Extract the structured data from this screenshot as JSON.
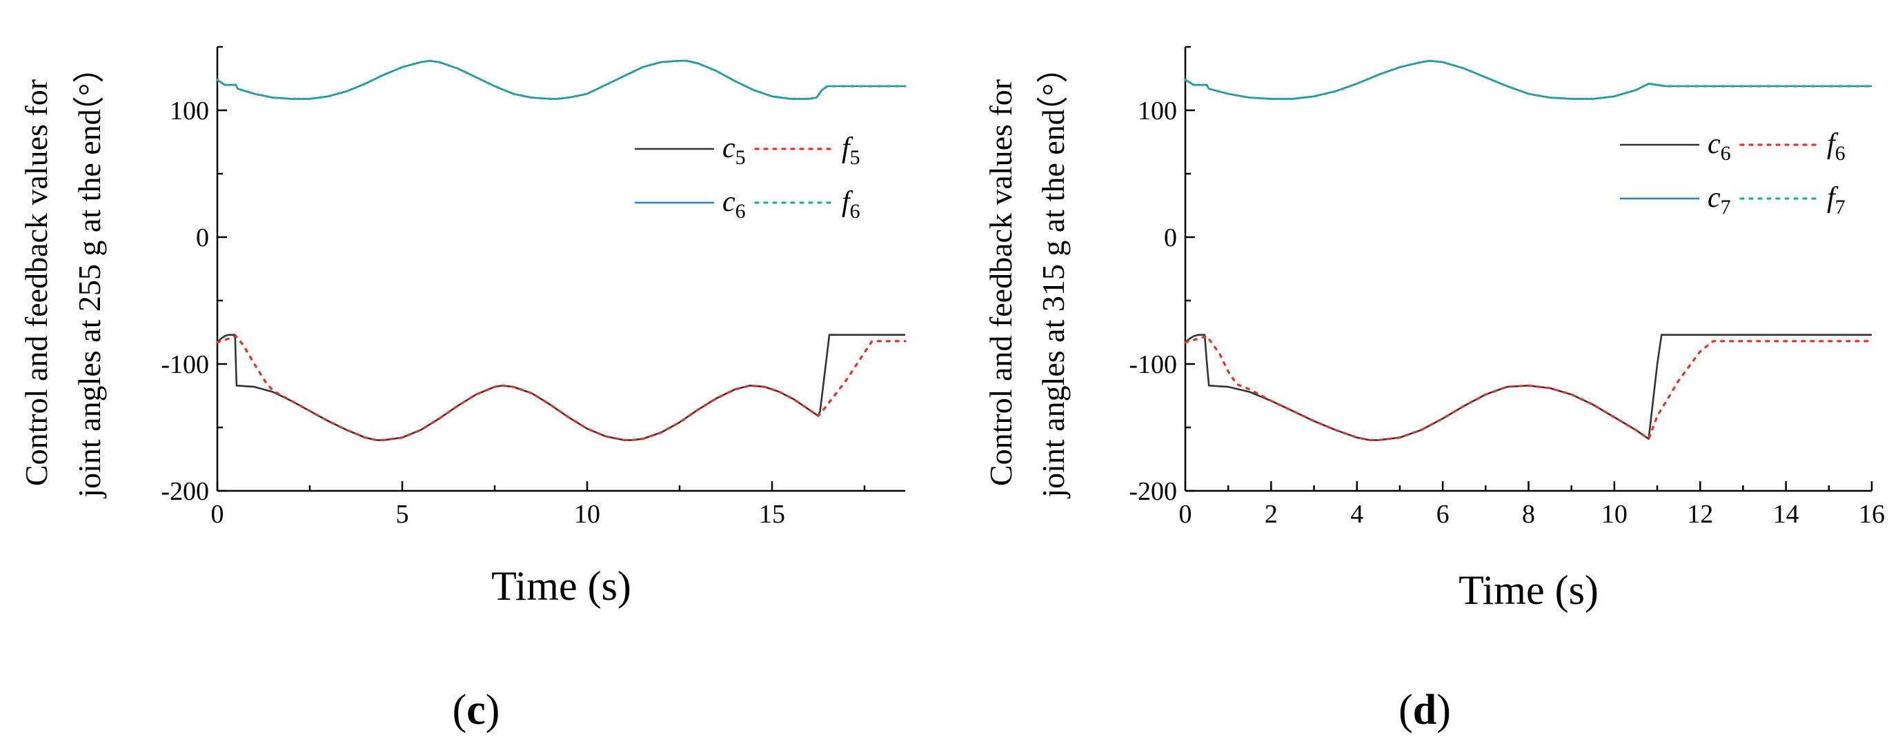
{
  "chart_data": [
    {
      "type": "line",
      "panel_label": {
        "open": "(",
        "letter": "c",
        "close": ")"
      },
      "xlabel": "Time (s)",
      "ylabel_line1": "Control and feedback values for",
      "ylabel_line2": "joint angles at 255 g at the end",
      "ylabel_unit": "（°）",
      "xlim": [
        0,
        18.6
      ],
      "ylim": [
        -200,
        150
      ],
      "x_ticks": [
        0,
        5,
        10,
        15
      ],
      "x_tick_labels": [
        "0",
        "5",
        "10",
        "15"
      ],
      "y_ticks": [
        -200,
        -100,
        0,
        100
      ],
      "y_tick_labels": [
        "-200",
        "-100",
        "0",
        "100"
      ],
      "legend_position": "right-middle",
      "series": [
        {
          "name": "c",
          "sub": "5",
          "color": "#333333",
          "style": "solid",
          "x": [
            0,
            0.1,
            0.2,
            0.3,
            0.48,
            0.5,
            0.52,
            1.0,
            1.5,
            2.0,
            2.5,
            3.0,
            3.5,
            4.0,
            4.3,
            4.5,
            5.0,
            5.5,
            6.0,
            6.5,
            7.0,
            7.5,
            7.7,
            8.0,
            8.5,
            9.0,
            9.5,
            10.0,
            10.5,
            11.0,
            11.2,
            11.5,
            12.0,
            12.5,
            13.0,
            13.5,
            14.0,
            14.4,
            14.8,
            15.2,
            15.6,
            16.0,
            16.25,
            16.3,
            16.55,
            17.0,
            18.6
          ],
          "y": [
            -83,
            -80,
            -78,
            -77,
            -77,
            -98,
            -117,
            -118,
            -122,
            -129,
            -137,
            -145,
            -152,
            -158,
            -160,
            -160,
            -158,
            -152,
            -143,
            -133,
            -124,
            -118,
            -117,
            -118,
            -123,
            -132,
            -142,
            -151,
            -157,
            -160,
            -160,
            -159,
            -154,
            -146,
            -136,
            -127,
            -120,
            -117,
            -118,
            -122,
            -128,
            -136,
            -141,
            -137,
            -77,
            -77,
            -77
          ]
        },
        {
          "name": "f",
          "sub": "5",
          "color": "#e8302a",
          "style": "dotted",
          "x": [
            0,
            0.3,
            0.5,
            0.7,
            1.0,
            1.3,
            1.5,
            2.0,
            2.5,
            3.0,
            3.5,
            4.0,
            4.3,
            4.5,
            5.0,
            5.5,
            6.0,
            6.5,
            7.0,
            7.5,
            7.7,
            8.0,
            8.5,
            9.0,
            9.5,
            10.0,
            10.5,
            11.0,
            11.2,
            11.5,
            12.0,
            12.5,
            13.0,
            13.5,
            14.0,
            14.4,
            14.8,
            15.2,
            15.6,
            16.0,
            16.25,
            16.5,
            17.0,
            17.7,
            18.6
          ],
          "y": [
            -83,
            -80,
            -78,
            -85,
            -100,
            -114,
            -121,
            -129,
            -137,
            -145,
            -152,
            -158,
            -160,
            -160,
            -158,
            -152,
            -143,
            -133,
            -124,
            -118,
            -117,
            -118,
            -123,
            -132,
            -142,
            -151,
            -157,
            -160,
            -160,
            -159,
            -154,
            -146,
            -136,
            -127,
            -120,
            -117,
            -118,
            -122,
            -128,
            -136,
            -141,
            -132,
            -113,
            -82,
            -82
          ]
        },
        {
          "name": "c",
          "sub": "6",
          "color": "#2e7fc2",
          "style": "solid",
          "x": [
            0,
            0.1,
            0.2,
            0.5,
            0.55,
            1.0,
            1.5,
            2.0,
            2.5,
            3.0,
            3.5,
            4.0,
            4.5,
            5.0,
            5.5,
            5.75,
            6.0,
            6.5,
            7.0,
            7.5,
            8.0,
            8.5,
            9.0,
            9.2,
            9.5,
            10.0,
            10.5,
            11.0,
            11.5,
            12.0,
            12.5,
            12.7,
            13.0,
            13.5,
            14.0,
            14.5,
            15.0,
            15.5,
            16.0,
            16.2,
            16.35,
            16.5,
            17.0,
            18.6
          ],
          "y": [
            124,
            122,
            120,
            120,
            117,
            113,
            110,
            109,
            109,
            111,
            115,
            121,
            128,
            134,
            138,
            139,
            138,
            133,
            126,
            119,
            113,
            110,
            109,
            109,
            110,
            113,
            120,
            127,
            134,
            138,
            139,
            139,
            137,
            131,
            123,
            116,
            111,
            109,
            109,
            110,
            116,
            119,
            119,
            119
          ]
        },
        {
          "name": "f",
          "sub": "6",
          "color": "#20b08a",
          "style": "dotted",
          "x": [
            0,
            0.1,
            0.2,
            0.5,
            0.55,
            1.0,
            1.5,
            2.0,
            2.5,
            3.0,
            3.5,
            4.0,
            4.5,
            5.0,
            5.5,
            5.75,
            6.0,
            6.5,
            7.0,
            7.5,
            8.0,
            8.5,
            9.0,
            9.2,
            9.5,
            10.0,
            10.5,
            11.0,
            11.5,
            12.0,
            12.5,
            12.7,
            13.0,
            13.5,
            14.0,
            14.5,
            15.0,
            15.5,
            16.0,
            16.2,
            16.35,
            16.5,
            17.0,
            18.6
          ],
          "y": [
            124,
            122,
            120,
            120,
            117,
            113,
            110,
            109,
            109,
            111,
            115,
            121,
            128,
            134,
            138,
            139,
            138,
            133,
            126,
            119,
            113,
            110,
            109,
            109,
            110,
            113,
            120,
            127,
            134,
            138,
            139,
            139,
            137,
            131,
            123,
            116,
            111,
            109,
            109,
            110,
            116,
            119,
            119,
            119
          ]
        }
      ],
      "legend_rows": [
        {
          "left": {
            "name": "c",
            "sub": "5"
          },
          "right": {
            "name": "f",
            "sub": "5"
          }
        },
        {
          "left": {
            "name": "c",
            "sub": "6"
          },
          "right": {
            "name": "f",
            "sub": "6"
          }
        }
      ]
    },
    {
      "type": "line",
      "panel_label": {
        "open": "(",
        "letter": "d",
        "close": ")"
      },
      "xlabel": "Time (s)",
      "ylabel_line1": "Control and feedback values for",
      "ylabel_line2": "joint angles at 315 g at the end",
      "ylabel_unit": "（°）",
      "xlim": [
        0,
        16
      ],
      "ylim": [
        -200,
        150
      ],
      "x_ticks": [
        0,
        2,
        4,
        6,
        8,
        10,
        12,
        14,
        16
      ],
      "x_tick_labels": [
        "0",
        "2",
        "4",
        "6",
        "8",
        "10",
        "12",
        "14",
        "16"
      ],
      "y_ticks": [
        -200,
        -100,
        0,
        100
      ],
      "y_tick_labels": [
        "-200",
        "-100",
        "0",
        "100"
      ],
      "legend_position": "top-right",
      "series": [
        {
          "name": "c",
          "sub": "6",
          "color": "#333333",
          "style": "solid",
          "x": [
            0,
            0.1,
            0.2,
            0.3,
            0.45,
            0.5,
            0.55,
            1.0,
            1.5,
            2.0,
            2.5,
            3.0,
            3.5,
            4.0,
            4.3,
            4.5,
            5.0,
            5.5,
            6.0,
            6.5,
            7.0,
            7.5,
            8.0,
            8.5,
            9.0,
            9.5,
            10.0,
            10.5,
            10.8,
            11.0,
            11.1,
            12.0,
            16.0
          ],
          "y": [
            -83,
            -80,
            -78,
            -77,
            -77,
            -98,
            -117,
            -118,
            -122,
            -129,
            -137,
            -145,
            -152,
            -158,
            -160,
            -160,
            -158,
            -152,
            -143,
            -133,
            -124,
            -118,
            -117,
            -119,
            -124,
            -132,
            -142,
            -152,
            -159,
            -100,
            -77,
            -77,
            -77
          ]
        },
        {
          "name": "f",
          "sub": "6",
          "color": "#e8302a",
          "style": "dotted",
          "x": [
            0,
            0.3,
            0.5,
            0.8,
            1.0,
            1.2,
            1.5,
            2.0,
            2.5,
            3.0,
            3.5,
            4.0,
            4.3,
            4.5,
            5.0,
            5.5,
            6.0,
            6.5,
            7.0,
            7.5,
            8.0,
            8.5,
            9.0,
            9.5,
            10.0,
            10.5,
            10.8,
            11.0,
            11.5,
            12.0,
            12.3,
            16.0
          ],
          "y": [
            -83,
            -80,
            -78,
            -92,
            -106,
            -116,
            -120,
            -129,
            -137,
            -145,
            -152,
            -158,
            -160,
            -160,
            -158,
            -152,
            -143,
            -133,
            -124,
            -118,
            -117,
            -119,
            -124,
            -132,
            -142,
            -152,
            -159,
            -141,
            -113,
            -90,
            -82,
            -82
          ]
        },
        {
          "name": "c",
          "sub": "7",
          "color": "#2e7fc2",
          "style": "solid",
          "x": [
            0,
            0.1,
            0.2,
            0.5,
            0.55,
            1.0,
            1.5,
            2.0,
            2.5,
            3.0,
            3.5,
            4.0,
            4.5,
            5.0,
            5.5,
            5.7,
            6.0,
            6.5,
            7.0,
            7.5,
            8.0,
            8.5,
            9.0,
            9.5,
            10.0,
            10.5,
            10.8,
            11.0,
            11.2,
            16.0
          ],
          "y": [
            124,
            122,
            120,
            120,
            117,
            113,
            110,
            109,
            109,
            111,
            115,
            121,
            128,
            134,
            138,
            139,
            138,
            133,
            126,
            119,
            113,
            110,
            109,
            109,
            111,
            116,
            121,
            120,
            119,
            119
          ]
        },
        {
          "name": "f",
          "sub": "7",
          "color": "#20b08a",
          "style": "dotted",
          "x": [
            0,
            0.1,
            0.2,
            0.5,
            0.55,
            1.0,
            1.5,
            2.0,
            2.5,
            3.0,
            3.5,
            4.0,
            4.5,
            5.0,
            5.5,
            5.7,
            6.0,
            6.5,
            7.0,
            7.5,
            8.0,
            8.5,
            9.0,
            9.5,
            10.0,
            10.5,
            10.8,
            11.0,
            11.2,
            16.0
          ],
          "y": [
            124,
            122,
            120,
            120,
            117,
            113,
            110,
            109,
            109,
            111,
            115,
            121,
            128,
            134,
            138,
            139,
            138,
            133,
            126,
            119,
            113,
            110,
            109,
            109,
            111,
            116,
            121,
            120,
            119,
            119
          ]
        }
      ],
      "legend_rows": [
        {
          "left": {
            "name": "c",
            "sub": "6"
          },
          "right": {
            "name": "f",
            "sub": "6"
          }
        },
        {
          "left": {
            "name": "c",
            "sub": "7"
          },
          "right": {
            "name": "f",
            "sub": "7"
          }
        }
      ]
    }
  ]
}
